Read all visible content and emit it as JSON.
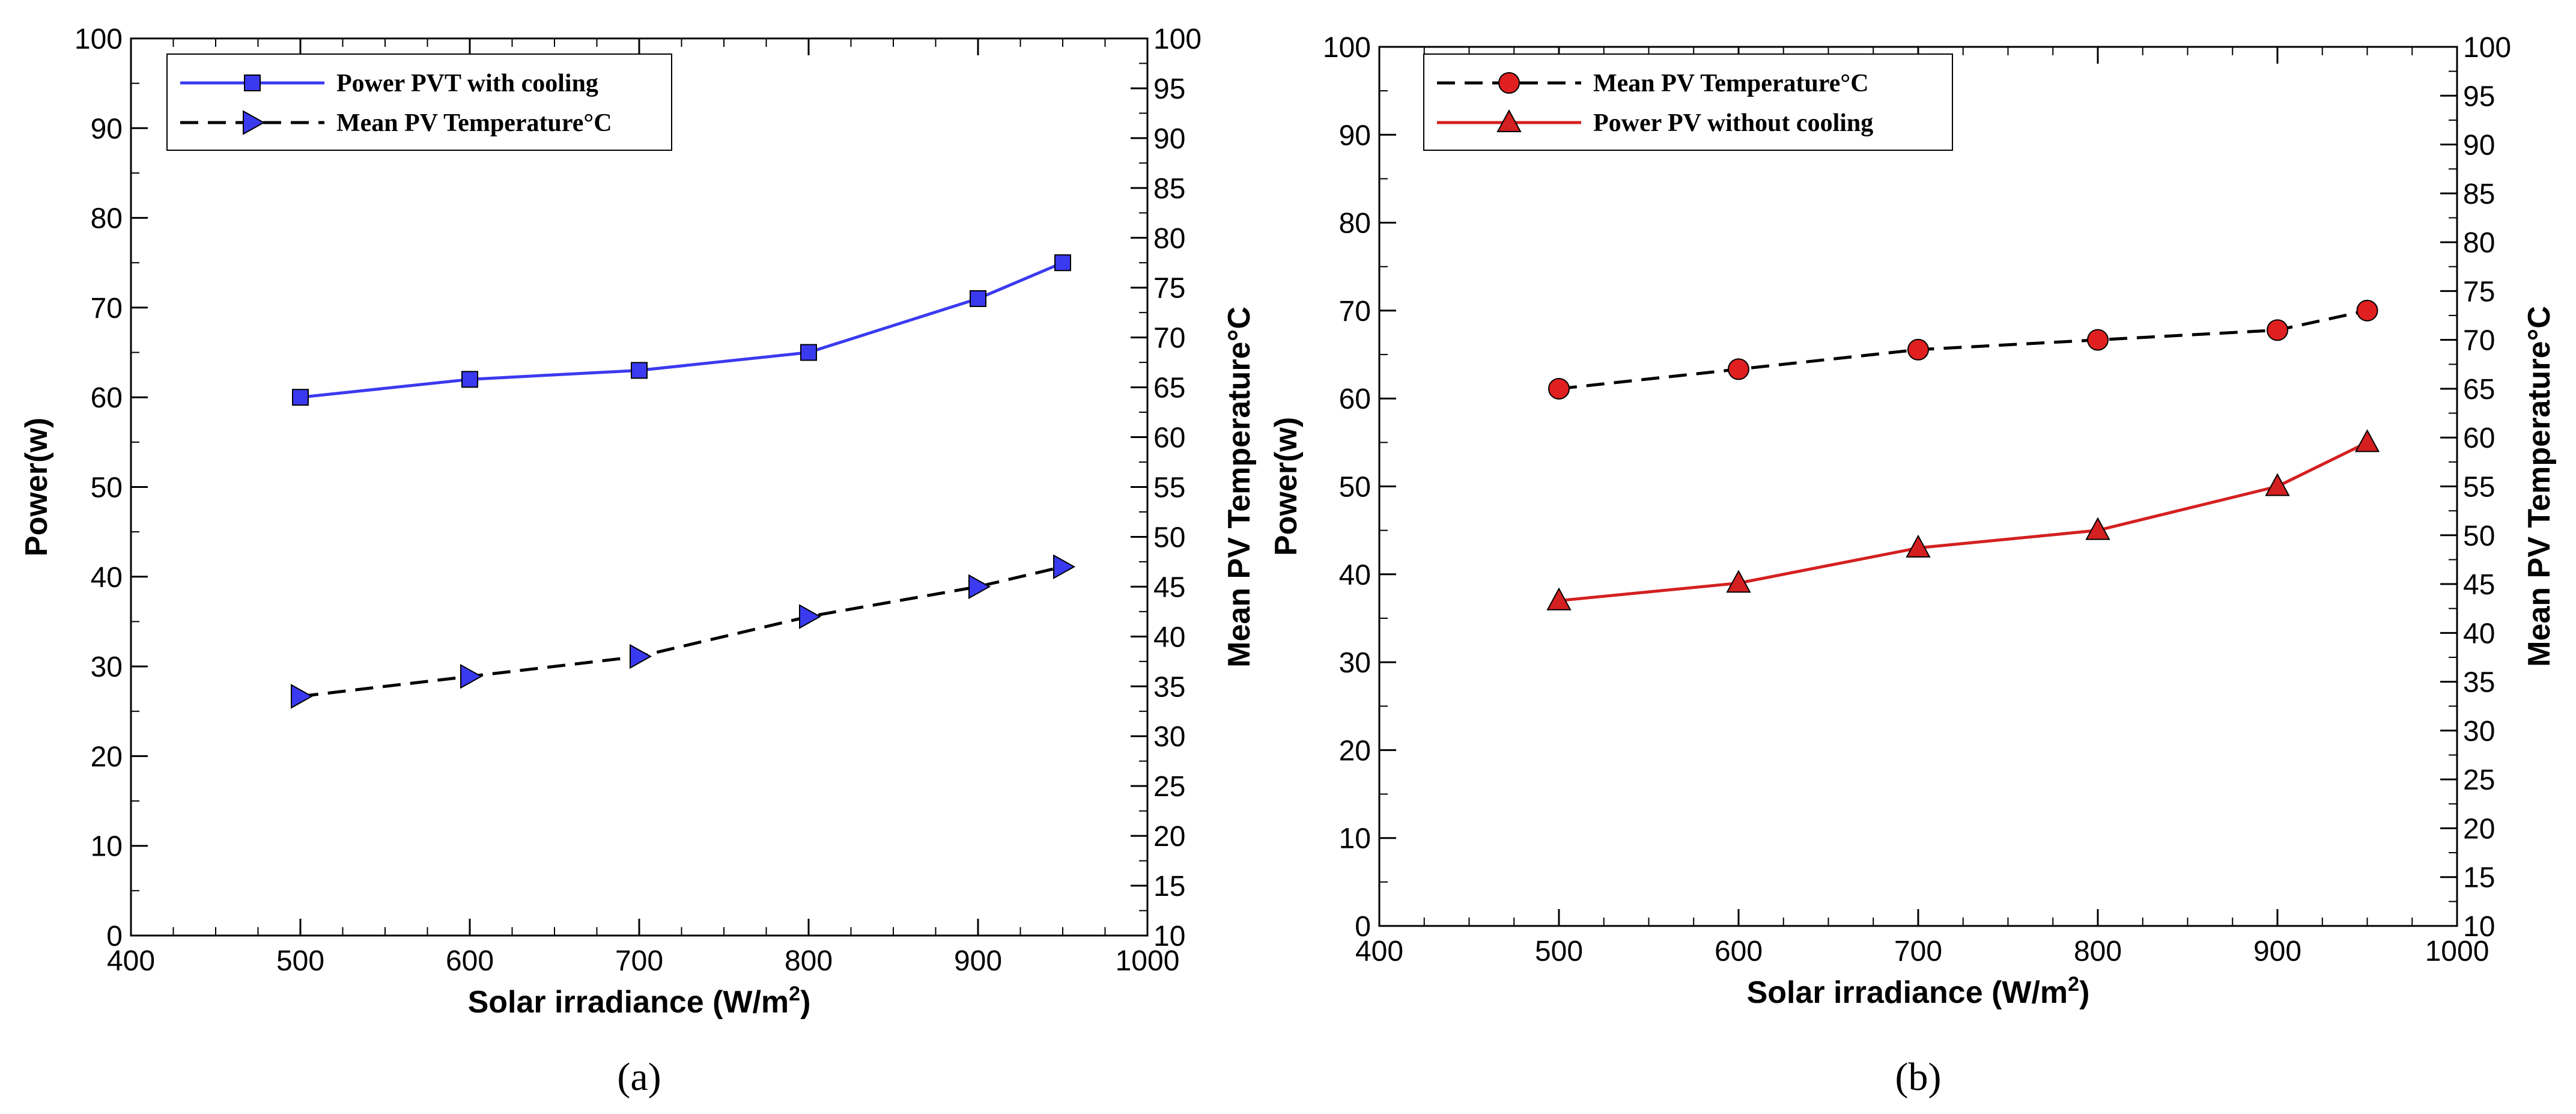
{
  "chart_data": [
    {
      "type": "line",
      "panel_label": "(a)",
      "xlabel": "Solar irradiance (W/m",
      "xlabel_sup": "2",
      "xlabel_close": ")",
      "ylabel": "Power(w)",
      "y2label": "Mean PV  Temperature°C",
      "xlim": [
        400,
        1000
      ],
      "ylim": [
        0,
        100
      ],
      "y2lim": [
        10,
        100
      ],
      "xticks": [
        400,
        500,
        600,
        700,
        800,
        900,
        1000
      ],
      "yticks": [
        0,
        10,
        20,
        30,
        40,
        50,
        60,
        70,
        80,
        90,
        100
      ],
      "y2ticks": [
        10,
        15,
        20,
        25,
        30,
        35,
        40,
        45,
        50,
        55,
        60,
        65,
        70,
        75,
        80,
        85,
        90,
        95,
        100
      ],
      "legend_position": "top-left",
      "series": [
        {
          "name": "Power PVT with cooling",
          "axis": "left",
          "x": [
            500,
            600,
            700,
            800,
            900,
            950
          ],
          "y": [
            60,
            62,
            63,
            65,
            71,
            75
          ],
          "color": "#3a3af0",
          "marker": "square",
          "dash": "solid"
        },
        {
          "name": "Mean PV  Temperature°C",
          "axis": "right",
          "x": [
            500,
            600,
            700,
            800,
            900,
            950
          ],
          "y": [
            34,
            36,
            38,
            42,
            45,
            47
          ],
          "color": "#000000",
          "marker_color": "#3a3af0",
          "marker": "triangle-right",
          "dash": "dashed"
        }
      ]
    },
    {
      "type": "line",
      "panel_label": "(b)",
      "xlabel": "Solar irradiance (W/m",
      "xlabel_sup": "2",
      "xlabel_close": ")",
      "ylabel": "Power(w)",
      "y2label": "Mean PV  Temperature°C",
      "xlim": [
        400,
        1000
      ],
      "ylim": [
        0,
        100
      ],
      "y2lim": [
        10,
        100
      ],
      "xticks": [
        400,
        500,
        600,
        700,
        800,
        900,
        1000
      ],
      "yticks": [
        0,
        10,
        20,
        30,
        40,
        50,
        60,
        70,
        80,
        90,
        100
      ],
      "y2ticks": [
        10,
        15,
        20,
        25,
        30,
        35,
        40,
        45,
        50,
        55,
        60,
        65,
        70,
        75,
        80,
        85,
        90,
        95,
        100
      ],
      "legend_position": "top-left",
      "series": [
        {
          "name": "Mean PV  Temperature°C",
          "axis": "right",
          "x": [
            500,
            600,
            700,
            800,
            900,
            950
          ],
          "y": [
            65,
            67,
            69,
            70,
            71,
            73
          ],
          "color": "#000000",
          "marker_color": "#e02020",
          "marker": "circle",
          "dash": "dashed"
        },
        {
          "name": "Power PV without cooling",
          "axis": "left",
          "x": [
            500,
            600,
            700,
            800,
            900,
            950
          ],
          "y": [
            37,
            39,
            43,
            45,
            50,
            55
          ],
          "color": "#d42020",
          "marker_color": "#d42020",
          "marker": "triangle-up",
          "dash": "solid"
        }
      ]
    }
  ]
}
